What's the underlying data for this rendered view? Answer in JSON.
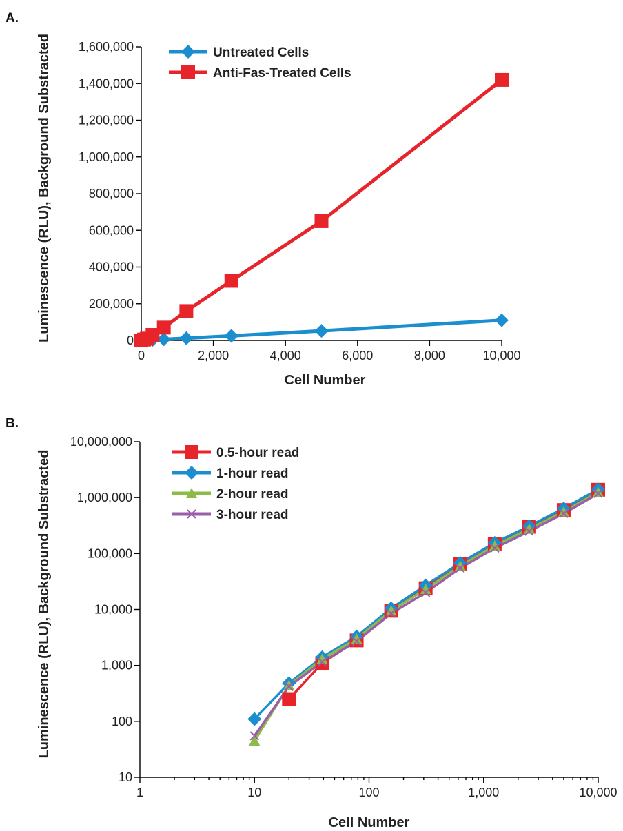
{
  "chart_data": [
    {
      "panel_label": "A.",
      "type": "line",
      "xlabel": "Cell Number",
      "ylabel": "Luminescence (RLU), Background Substracted",
      "xlim": [
        0,
        10000
      ],
      "ylim": [
        0,
        1600000
      ],
      "x_scale": "linear",
      "y_scale": "linear",
      "x_ticks": [
        0,
        2000,
        4000,
        6000,
        8000,
        10000
      ],
      "x_tick_labels": [
        "0",
        "2,000",
        "4,000",
        "6,000",
        "8,000",
        "10,000"
      ],
      "y_ticks": [
        0,
        200000,
        400000,
        600000,
        800000,
        1000000,
        1200000,
        1400000,
        1600000
      ],
      "y_tick_labels": [
        "0",
        "200,000",
        "400,000",
        "600,000",
        "800,000",
        "1,000,000",
        "1,200,000",
        "1,400,000",
        "1,600,000"
      ],
      "grid": false,
      "legend_position": "top-left",
      "series": [
        {
          "name": "Untreated Cells",
          "color": "#1b8ecf",
          "marker": "diamond",
          "x": [
            0,
            78,
            156,
            312,
            625,
            1250,
            2500,
            5000,
            10000
          ],
          "y": [
            0,
            1000,
            1500,
            3000,
            6000,
            12000,
            25000,
            52000,
            110000
          ]
        },
        {
          "name": "Anti-Fas-Treated Cells",
          "color": "#e8242b",
          "marker": "square",
          "x": [
            0,
            78,
            156,
            312,
            625,
            1250,
            2500,
            5000,
            10000
          ],
          "y": [
            0,
            5000,
            10000,
            30000,
            70000,
            160000,
            325000,
            650000,
            1420000
          ]
        }
      ]
    },
    {
      "panel_label": "B.",
      "type": "line",
      "xlabel": "Cell Number",
      "ylabel": "Luminescence (RLU), Background Substracted",
      "xlim": [
        1,
        10000
      ],
      "ylim": [
        10,
        10000000
      ],
      "x_scale": "log",
      "y_scale": "log",
      "x_ticks": [
        1,
        10,
        100,
        1000,
        10000
      ],
      "x_tick_labels": [
        "1",
        "10",
        "100",
        "1,000",
        "10,000"
      ],
      "y_ticks": [
        10,
        100,
        1000,
        10000,
        100000,
        1000000,
        10000000
      ],
      "y_tick_labels": [
        "10",
        "100",
        "1,000",
        "10,000",
        "100,000",
        "1,000,000",
        "10,000,000"
      ],
      "grid": false,
      "legend_position": "top-left",
      "series": [
        {
          "name": "0.5-hour read",
          "color": "#e8242b",
          "marker": "square",
          "x": [
            20,
            39,
            78,
            156,
            312,
            625,
            1250,
            2500,
            5000,
            10000
          ],
          "y": [
            250,
            1100,
            2800,
            9500,
            24000,
            65000,
            150000,
            300000,
            600000,
            1380000
          ]
        },
        {
          "name": "1-hour read",
          "color": "#1b8ecf",
          "marker": "diamond",
          "x": [
            10,
            20,
            39,
            78,
            156,
            312,
            625,
            1250,
            2500,
            5000,
            10000
          ],
          "y": [
            110,
            480,
            1400,
            3300,
            10500,
            27000,
            68000,
            155000,
            310000,
            640000,
            1400000
          ]
        },
        {
          "name": "2-hour read",
          "color": "#8dbb48",
          "marker": "triangle",
          "x": [
            10,
            20,
            39,
            78,
            156,
            312,
            625,
            1250,
            2500,
            5000,
            10000
          ],
          "y": [
            45,
            440,
            1300,
            3000,
            9500,
            23000,
            60000,
            138000,
            275000,
            560000,
            1250000
          ]
        },
        {
          "name": "3-hour read",
          "color": "#9b5ea8",
          "marker": "x",
          "x": [
            10,
            20,
            39,
            78,
            156,
            312,
            625,
            1250,
            2500,
            5000,
            10000
          ],
          "y": [
            55,
            420,
            1150,
            2700,
            8500,
            20000,
            55000,
            125000,
            250000,
            520000,
            1180000
          ]
        }
      ]
    }
  ]
}
